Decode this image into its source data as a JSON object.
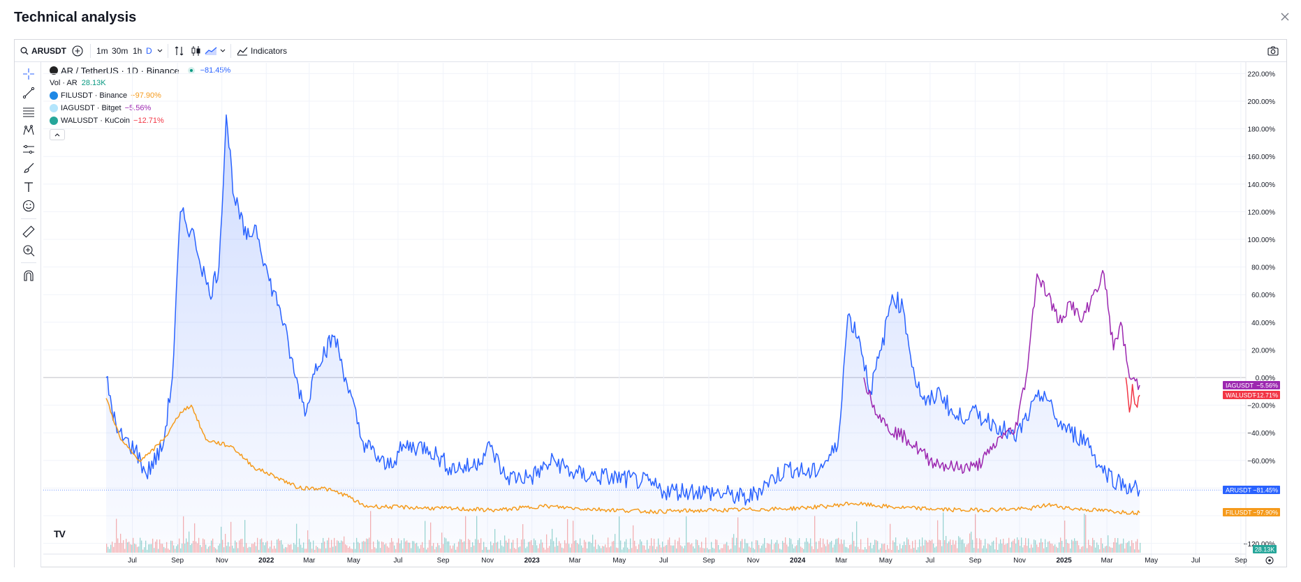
{
  "dialog": {
    "title": "Technical analysis"
  },
  "toolbar": {
    "symbol": "ARUSDT",
    "intervals": [
      "1m",
      "30m",
      "1h",
      "D"
    ],
    "indicators_label": "Indicators"
  },
  "legend": {
    "main": "AR / TetherUS · 1D · Binance",
    "main_change": "−81.45%",
    "volume_label": "Vol · AR",
    "volume_value": "28.13K",
    "compare": [
      {
        "name": "FILUSDT · Binance",
        "change": "−97.90%",
        "color": "#f59a1b"
      },
      {
        "name": "IAGUSDT · Bitget",
        "change": "−5.56%",
        "color": "#9c27b0"
      },
      {
        "name": "WALUSDT · KuCoin",
        "change": "−12.71%",
        "color": "#f23645"
      }
    ]
  },
  "colors": {
    "ar": "#2962ff",
    "fil": "#f59a1b",
    "iag": "#9c27b0",
    "wal": "#f23645",
    "vol_up": "#26a69a",
    "vol_down": "#ef5350"
  },
  "chart_data": {
    "type": "line",
    "y_unit": "% change",
    "ylim": [
      -120,
      220
    ],
    "y_ticks": [
      "220.00%",
      "200.00%",
      "180.00%",
      "160.00%",
      "140.00%",
      "120.00%",
      "100.00%",
      "80.00%",
      "60.00%",
      "40.00%",
      "20.00%",
      "0.00%",
      "−20.00%",
      "−40.00%",
      "−60.00%",
      "−120.00%"
    ],
    "x_ticks": [
      "Jul",
      "Sep",
      "Nov",
      "2022",
      "Mar",
      "May",
      "Jul",
      "Sep",
      "Nov",
      "2023",
      "Mar",
      "May",
      "Jul",
      "Sep",
      "Nov",
      "2024",
      "Mar",
      "May",
      "Jul",
      "Sep",
      "Nov",
      "2025",
      "Mar",
      "May",
      "Jul",
      "Sep"
    ],
    "series": [
      {
        "name": "ARUSDT",
        "label": "ARUSDT",
        "last_value_label": "−81.45%",
        "points": [
          [
            "2021-05-26",
            0
          ],
          [
            "2021-06-10",
            -40
          ],
          [
            "2021-07-05",
            -52
          ],
          [
            "2021-07-20",
            -70
          ],
          [
            "2021-08-12",
            -50
          ],
          [
            "2021-08-25",
            0
          ],
          [
            "2021-09-05",
            120
          ],
          [
            "2021-09-25",
            100
          ],
          [
            "2021-10-15",
            60
          ],
          [
            "2021-10-28",
            80
          ],
          [
            "2021-11-07",
            190
          ],
          [
            "2021-11-18",
            130
          ],
          [
            "2021-12-05",
            100
          ],
          [
            "2021-12-18",
            110
          ],
          [
            "2022-01-05",
            70
          ],
          [
            "2022-01-20",
            50
          ],
          [
            "2022-02-10",
            0
          ],
          [
            "2022-02-25",
            -25
          ],
          [
            "2022-03-10",
            10
          ],
          [
            "2022-04-05",
            30
          ],
          [
            "2022-04-20",
            0
          ],
          [
            "2022-05-12",
            -45
          ],
          [
            "2022-06-15",
            -65
          ],
          [
            "2022-07-10",
            -50
          ],
          [
            "2022-08-10",
            -50
          ],
          [
            "2022-09-10",
            -65
          ],
          [
            "2022-10-10",
            -65
          ],
          [
            "2022-11-05",
            -50
          ],
          [
            "2022-11-25",
            -72
          ],
          [
            "2022-12-31",
            -72
          ],
          [
            "2023-02-01",
            -60
          ],
          [
            "2023-03-01",
            -70
          ],
          [
            "2023-04-15",
            -72
          ],
          [
            "2023-06-01",
            -75
          ],
          [
            "2023-07-01",
            -82
          ],
          [
            "2023-08-15",
            -82
          ],
          [
            "2023-10-01",
            -85
          ],
          [
            "2023-10-25",
            -88
          ],
          [
            "2023-11-20",
            -76
          ],
          [
            "2023-12-20",
            -65
          ],
          [
            "2024-01-20",
            -70
          ],
          [
            "2024-02-10",
            -60
          ],
          [
            "2024-02-25",
            -50
          ],
          [
            "2024-03-10",
            45
          ],
          [
            "2024-03-25",
            30
          ],
          [
            "2024-04-10",
            -10
          ],
          [
            "2024-04-25",
            20
          ],
          [
            "2024-05-10",
            60
          ],
          [
            "2024-05-25",
            50
          ],
          [
            "2024-06-10",
            0
          ],
          [
            "2024-06-25",
            -20
          ],
          [
            "2024-07-15",
            -10
          ],
          [
            "2024-08-05",
            -30
          ],
          [
            "2024-08-25",
            -25
          ],
          [
            "2024-09-15",
            -30
          ],
          [
            "2024-10-05",
            -35
          ],
          [
            "2024-10-25",
            -45
          ],
          [
            "2024-11-15",
            -25
          ],
          [
            "2024-12-05",
            -10
          ],
          [
            "2024-12-20",
            -30
          ],
          [
            "2025-01-10",
            -40
          ],
          [
            "2025-02-01",
            -45
          ],
          [
            "2025-02-20",
            -65
          ],
          [
            "2025-03-15",
            -75
          ],
          [
            "2025-04-05",
            -80
          ],
          [
            "2025-04-15",
            -81.45
          ]
        ]
      },
      {
        "name": "FILUSDT",
        "label": "FILUSDT",
        "last_value_label": "−97.90%",
        "points": [
          [
            "2021-05-26",
            -15
          ],
          [
            "2021-06-15",
            -45
          ],
          [
            "2021-07-10",
            -60
          ],
          [
            "2021-07-25",
            -55
          ],
          [
            "2021-08-20",
            -40
          ],
          [
            "2021-09-05",
            -25
          ],
          [
            "2021-09-20",
            -20
          ],
          [
            "2021-10-10",
            -45
          ],
          [
            "2021-11-15",
            -50
          ],
          [
            "2021-12-15",
            -65
          ],
          [
            "2022-01-15",
            -72
          ],
          [
            "2022-02-15",
            -80
          ],
          [
            "2022-03-20",
            -80
          ],
          [
            "2022-04-20",
            -85
          ],
          [
            "2022-05-15",
            -93
          ],
          [
            "2022-07-15",
            -94
          ],
          [
            "2022-09-15",
            -95
          ],
          [
            "2022-11-15",
            -96
          ],
          [
            "2023-01-15",
            -93
          ],
          [
            "2023-03-15",
            -95
          ],
          [
            "2023-06-15",
            -97
          ],
          [
            "2023-09-15",
            -96
          ],
          [
            "2023-12-15",
            -95
          ],
          [
            "2024-02-15",
            -93
          ],
          [
            "2024-03-15",
            -91
          ],
          [
            "2024-05-15",
            -94
          ],
          [
            "2024-08-15",
            -96
          ],
          [
            "2024-11-15",
            -95
          ],
          [
            "2024-12-10",
            -92
          ],
          [
            "2025-01-15",
            -95
          ],
          [
            "2025-03-15",
            -97
          ],
          [
            "2025-04-15",
            -97.9
          ]
        ]
      },
      {
        "name": "IAGUSDT",
        "label": "IAGUSDT",
        "last_value_label": "−5.56%",
        "points": [
          [
            "2024-04-01",
            0
          ],
          [
            "2024-04-15",
            -20
          ],
          [
            "2024-05-01",
            -35
          ],
          [
            "2024-06-01",
            -45
          ],
          [
            "2024-07-01",
            -60
          ],
          [
            "2024-08-01",
            -65
          ],
          [
            "2024-09-01",
            -65
          ],
          [
            "2024-09-20",
            -55
          ],
          [
            "2024-10-10",
            -40
          ],
          [
            "2024-10-25",
            -40
          ],
          [
            "2024-11-10",
            0
          ],
          [
            "2024-11-25",
            75
          ],
          [
            "2024-12-10",
            60
          ],
          [
            "2024-12-25",
            40
          ],
          [
            "2025-01-10",
            55
          ],
          [
            "2025-01-25",
            40
          ],
          [
            "2025-02-10",
            60
          ],
          [
            "2025-02-25",
            75
          ],
          [
            "2025-03-10",
            20
          ],
          [
            "2025-03-20",
            40
          ],
          [
            "2025-04-01",
            0
          ],
          [
            "2025-04-15",
            -5.56
          ]
        ]
      },
      {
        "name": "WALUSDT",
        "label": "WALUSDT",
        "last_value_label": "−12.71%",
        "points": [
          [
            "2025-03-27",
            0
          ],
          [
            "2025-04-01",
            -25
          ],
          [
            "2025-04-05",
            -5
          ],
          [
            "2025-04-10",
            -20
          ],
          [
            "2025-04-15",
            -12.71
          ]
        ]
      }
    ],
    "volume_label": "28.13K",
    "grid": true,
    "legend_placement": "top-left"
  }
}
